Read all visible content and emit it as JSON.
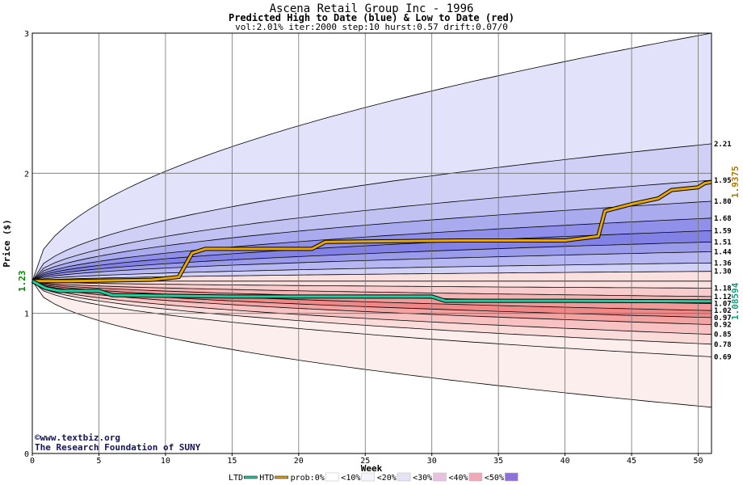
{
  "chart_data": {
    "type": "area",
    "title": "Ascena Retail Group Inc - 1996",
    "subtitle": "Predicted High to Date (blue) &  Low to Date (red)",
    "params": "vol:2.01% iter:2000 step:10 hurst:0.57 drift:0.07/0",
    "xlabel": "Week",
    "ylabel": "Price ($)",
    "xlim": [
      0,
      51
    ],
    "ylim": [
      0,
      3
    ],
    "x_ticks": [
      "0",
      "5",
      "10",
      "15",
      "20",
      "25",
      "30",
      "35",
      "40",
      "45",
      "50"
    ],
    "y_ticks": [
      "0",
      "1",
      "2",
      "3"
    ],
    "grid": true,
    "start_price": 1.23,
    "start_price_label": "1.23",
    "htd_final": 1.9375,
    "htd_final_label": "1.9375",
    "ltd_final": 1.08594,
    "ltd_final_label": "1.08594",
    "percentile_lines": [
      {
        "label": "3",
        "end": 3.0,
        "color": "#e2e2fa"
      },
      {
        "label": "2.21",
        "end": 2.21,
        "color": "#e2e2fa"
      },
      {
        "label": "1.95",
        "end": 1.95,
        "color": "#d0d0f6"
      },
      {
        "label": "1.80",
        "end": 1.8,
        "color": "#c2c2f2"
      },
      {
        "label": "1.68",
        "end": 1.68,
        "color": "#aaaaee"
      },
      {
        "label": "1.59",
        "end": 1.59,
        "color": "#9090ea"
      },
      {
        "label": "1.51",
        "end": 1.51,
        "color": "#8282e6"
      },
      {
        "label": "1.44",
        "end": 1.44,
        "color": "#9b9bec"
      },
      {
        "label": "1.36",
        "end": 1.36,
        "color": "#b6b6f2"
      },
      {
        "label": "1.30",
        "end": 1.3,
        "color": "#d2d2f8"
      },
      {
        "label": "1.18",
        "end": 1.18,
        "color": "#fbe0e0"
      },
      {
        "label": "1.12",
        "end": 1.12,
        "color": "#f8cccc"
      },
      {
        "label": "1.07",
        "end": 1.07,
        "color": "#f5b3b3"
      },
      {
        "label": "1.02",
        "end": 1.02,
        "color": "#f29a9a"
      },
      {
        "label": "0.97",
        "end": 0.97,
        "color": "#f08888"
      },
      {
        "label": "0.92",
        "end": 0.92,
        "color": "#f4a2a2"
      },
      {
        "label": "0.85",
        "end": 0.85,
        "color": "#f8c2c2"
      },
      {
        "label": "0.78",
        "end": 0.78,
        "color": "#fbdada"
      },
      {
        "label": "0.69",
        "end": 0.69,
        "color": "#fdeeee"
      },
      {
        "label": "",
        "end": 0.33,
        "color": "#fdeeee"
      }
    ],
    "htd_path": [
      [
        0,
        1.23
      ],
      [
        3,
        1.23
      ],
      [
        9,
        1.24
      ],
      [
        11,
        1.26
      ],
      [
        12,
        1.43
      ],
      [
        13,
        1.46
      ],
      [
        21,
        1.46
      ],
      [
        22,
        1.51
      ],
      [
        32,
        1.52
      ],
      [
        40,
        1.52
      ],
      [
        42.5,
        1.55
      ],
      [
        43,
        1.73
      ],
      [
        45,
        1.78
      ],
      [
        47,
        1.82
      ],
      [
        48,
        1.88
      ],
      [
        50,
        1.9
      ],
      [
        50.5,
        1.93
      ],
      [
        51,
        1.9375
      ]
    ],
    "ltd_path": [
      [
        0,
        1.23
      ],
      [
        1,
        1.18
      ],
      [
        2,
        1.16
      ],
      [
        5,
        1.16
      ],
      [
        6,
        1.13
      ],
      [
        15,
        1.12
      ],
      [
        30,
        1.12
      ],
      [
        31,
        1.09
      ],
      [
        40,
        1.09
      ],
      [
        51,
        1.08594
      ]
    ],
    "legend": [
      {
        "label": "LTD",
        "color": "#20c8a0",
        "kind": "line"
      },
      {
        "label": "HTD",
        "color": "#e0a000",
        "kind": "line"
      },
      {
        "label": "prob:0%",
        "color": "#ffffff",
        "kind": "swatch"
      },
      {
        "label": "<10%",
        "color": "#f4f4fc",
        "kind": "swatch"
      },
      {
        "label": "<20%",
        "color": "#e6e2f4",
        "kind": "swatch"
      },
      {
        "label": "<30%",
        "color": "#e6c2e0",
        "kind": "swatch"
      },
      {
        "label": "<40%",
        "color": "#f0a8b6",
        "kind": "swatch"
      },
      {
        "label": "<50%",
        "color": "#8c72d8",
        "kind": "swatch"
      }
    ]
  },
  "credit": {
    "website": "©www.textbiz.org",
    "org": "The Research Foundation of SUNY"
  }
}
